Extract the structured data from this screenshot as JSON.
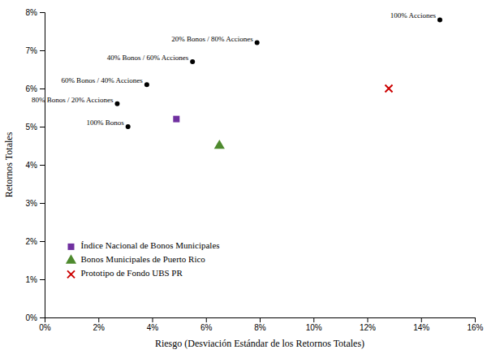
{
  "chart_data": {
    "type": "scatter",
    "xlabel": "Riesgo (Desviación Estándar de los Retornos Totales)",
    "ylabel": "Retornos Totales",
    "xlim": [
      0,
      0.16
    ],
    "ylim": [
      0,
      0.08
    ],
    "xticks": [
      {
        "value": 0.0,
        "label": "0%"
      },
      {
        "value": 0.02,
        "label": "2%"
      },
      {
        "value": 0.04,
        "label": "4%"
      },
      {
        "value": 0.06,
        "label": "6%"
      },
      {
        "value": 0.08,
        "label": "8%"
      },
      {
        "value": 0.1,
        "label": "10%"
      },
      {
        "value": 0.12,
        "label": "12%"
      },
      {
        "value": 0.14,
        "label": "14%"
      },
      {
        "value": 0.16,
        "label": "16%"
      }
    ],
    "yticks": [
      {
        "value": 0.0,
        "label": "0%"
      },
      {
        "value": 0.01,
        "label": "1%"
      },
      {
        "value": 0.02,
        "label": "2%"
      },
      {
        "value": 0.03,
        "label": "3%"
      },
      {
        "value": 0.04,
        "label": "4%"
      },
      {
        "value": 0.05,
        "label": "5%"
      },
      {
        "value": 0.06,
        "label": "6%"
      },
      {
        "value": 0.07,
        "label": "7%"
      },
      {
        "value": 0.08,
        "label": "8%"
      }
    ],
    "grid": false,
    "legend": "lower left",
    "series": [
      {
        "color": "black",
        "marker": "circle",
        "x": [
          0.031,
          0.027,
          0.038,
          0.055,
          0.079,
          0.147
        ],
        "values": [
          0.05,
          0.056,
          0.061,
          0.067,
          0.072,
          0.078
        ],
        "labels": [
          "100% Bonos",
          "80% Bonos / 20% Acciones",
          "60% Bonos / 40% Acciones",
          "40% Bonos / 60% Acciones",
          "20% Bonos / 80% Acciones",
          "100% Acciones"
        ]
      },
      {
        "name": "Índice Nacional de Bonos Municipales",
        "color": "#7030a0",
        "marker": "square",
        "x": [
          0.049
        ],
        "values": [
          0.052
        ]
      },
      {
        "name": "Bonos Municipales de Puerto Rico",
        "color": "#4e8a2e",
        "marker": "triangle-up",
        "x": [
          0.065
        ],
        "values": [
          0.045
        ]
      },
      {
        "name": "Prototipo de Fondo UBS PR",
        "color": "#cc0000",
        "marker": "x",
        "x": [
          0.128
        ],
        "values": [
          0.06
        ]
      }
    ]
  }
}
